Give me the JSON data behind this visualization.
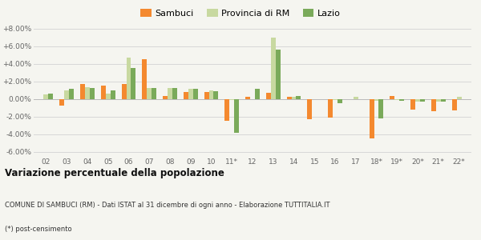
{
  "categories": [
    "02",
    "03",
    "04",
    "05",
    "06",
    "07",
    "08",
    "09",
    "10",
    "11*",
    "12",
    "13",
    "14",
    "15",
    "16",
    "17",
    "18*",
    "19*",
    "20*",
    "21*",
    "22*"
  ],
  "sambuci": [
    0.0,
    -0.8,
    1.7,
    1.5,
    1.7,
    4.5,
    0.3,
    0.8,
    0.8,
    -2.5,
    0.2,
    0.7,
    0.2,
    -2.3,
    -2.1,
    0.0,
    -4.5,
    0.3,
    -1.2,
    -1.4,
    -1.3
  ],
  "provincia_rm": [
    0.5,
    1.0,
    1.3,
    0.6,
    4.7,
    1.2,
    1.2,
    1.1,
    1.0,
    -0.1,
    0.0,
    7.0,
    0.2,
    0.0,
    -0.1,
    0.2,
    -0.2,
    -0.1,
    -0.3,
    -0.3,
    0.2
  ],
  "lazio": [
    0.6,
    1.1,
    1.2,
    1.0,
    3.5,
    1.2,
    1.2,
    1.1,
    0.9,
    -3.9,
    1.1,
    5.6,
    0.3,
    0.0,
    -0.5,
    0.0,
    -2.2,
    -0.2,
    -0.3,
    -0.3,
    0.0
  ],
  "color_sambuci": "#f4892f",
  "color_provincia": "#c8d9a0",
  "color_lazio": "#7aaa5a",
  "bg_color": "#f5f5f0",
  "grid_color": "#d8d8d8",
  "title": "Variazione percentuale della popolazione",
  "subtitle": "COMUNE DI SAMBUCI (RM) - Dati ISTAT al 31 dicembre di ogni anno - Elaborazione TUTTITALIA.IT",
  "footnote": "(*) post-censimento",
  "ylim": [
    -6.5,
    8.5
  ],
  "yticks": [
    -6.0,
    -4.0,
    -2.0,
    0.0,
    2.0,
    4.0,
    6.0,
    8.0
  ]
}
